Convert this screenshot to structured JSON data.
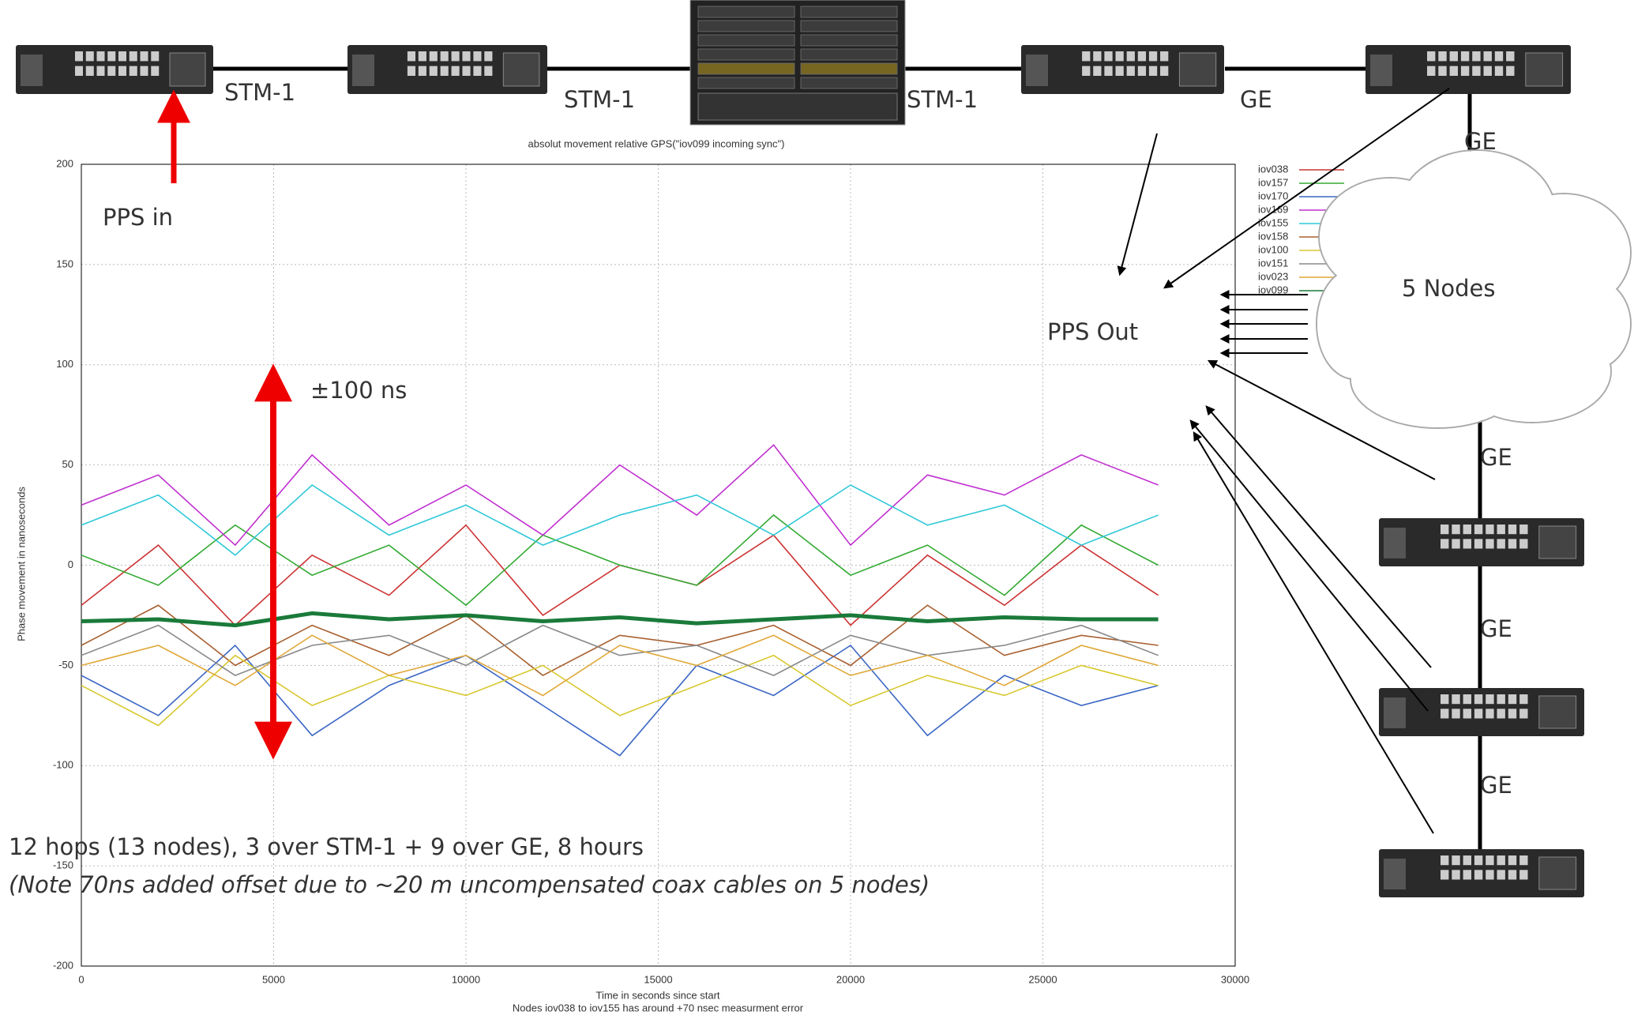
{
  "chart_data": {
    "type": "line",
    "title": "absolut movement relative GPS(\"iov099 incoming sync\")",
    "xlabel": "Time in seconds since start",
    "note": "Nodes iov038 to iov155 has around +70 nsec measurment error",
    "ylabel": "Phase movement in nanoseconds",
    "x": [
      0,
      2000,
      4000,
      6000,
      8000,
      10000,
      12000,
      14000,
      16000,
      18000,
      20000,
      22000,
      24000,
      26000,
      28000
    ],
    "xlim": [
      0,
      30000
    ],
    "xticks": [
      0,
      5000,
      10000,
      15000,
      20000,
      25000,
      30000
    ],
    "ylim": [
      -200,
      200
    ],
    "yticks": [
      -200,
      -150,
      -100,
      -50,
      0,
      50,
      100,
      150,
      200
    ],
    "grid": true,
    "legend": "top-right",
    "series": [
      {
        "name": "iov038",
        "color": "#cc3333",
        "values": [
          -20,
          10,
          -30,
          5,
          -15,
          20,
          -25,
          0,
          -10,
          15,
          -30,
          5,
          -20,
          10,
          -15
        ]
      },
      {
        "name": "iov157",
        "color": "#33aa33",
        "values": [
          5,
          -10,
          20,
          -5,
          10,
          -20,
          15,
          0,
          -10,
          25,
          -5,
          10,
          -15,
          20,
          0
        ]
      },
      {
        "name": "iov170",
        "color": "#3a66c4",
        "values": [
          -55,
          -75,
          -40,
          -85,
          -60,
          -45,
          -70,
          -95,
          -50,
          -65,
          -40,
          -85,
          -55,
          -70,
          -60
        ]
      },
      {
        "name": "iov169",
        "color": "#c030d0",
        "values": [
          30,
          45,
          10,
          55,
          20,
          40,
          15,
          50,
          25,
          60,
          10,
          45,
          35,
          55,
          40
        ]
      },
      {
        "name": "iov155",
        "color": "#30c8d8",
        "values": [
          20,
          35,
          5,
          40,
          15,
          30,
          10,
          25,
          35,
          15,
          40,
          20,
          30,
          10,
          25
        ]
      },
      {
        "name": "iov158",
        "color": "#a86030",
        "values": [
          -40,
          -20,
          -50,
          -30,
          -45,
          -25,
          -55,
          -35,
          -40,
          -30,
          -50,
          -20,
          -45,
          -35,
          -40
        ]
      },
      {
        "name": "iov100",
        "color": "#d8c830",
        "values": [
          -60,
          -80,
          -45,
          -70,
          -55,
          -65,
          -50,
          -75,
          -60,
          -45,
          -70,
          -55,
          -65,
          -50,
          -60
        ]
      },
      {
        "name": "iov151",
        "color": "#888888",
        "values": [
          -45,
          -30,
          -55,
          -40,
          -35,
          -50,
          -30,
          -45,
          -40,
          -55,
          -35,
          -45,
          -40,
          -30,
          -45
        ]
      },
      {
        "name": "iov023",
        "color": "#e0a838",
        "values": [
          -50,
          -40,
          -60,
          -35,
          -55,
          -45,
          -65,
          -40,
          -50,
          -35,
          -55,
          -45,
          -60,
          -40,
          -50
        ]
      },
      {
        "name": "iov099",
        "color": "#1a7a3a",
        "values": [
          -28,
          -27,
          -30,
          -24,
          -27,
          -25,
          -28,
          -26,
          -29,
          -27,
          -25,
          -28,
          -26,
          -27,
          -27
        ]
      }
    ]
  },
  "diagram": {
    "links": [
      "STM-1",
      "STM-1",
      "STM-1",
      "GE",
      "GE",
      "GE",
      "GE",
      "GE"
    ],
    "pps_in": "PPS in",
    "range": "±100 ns",
    "pps_out": "PPS Out",
    "cloud": "5 Nodes"
  },
  "caption": {
    "summary": "12 hops (13 nodes), 3 over STM-1 + 9 over GE, 8 hours",
    "note": "(Note 70ns added offset due to ~20 m uncompensated coax cables on 5 nodes)"
  }
}
